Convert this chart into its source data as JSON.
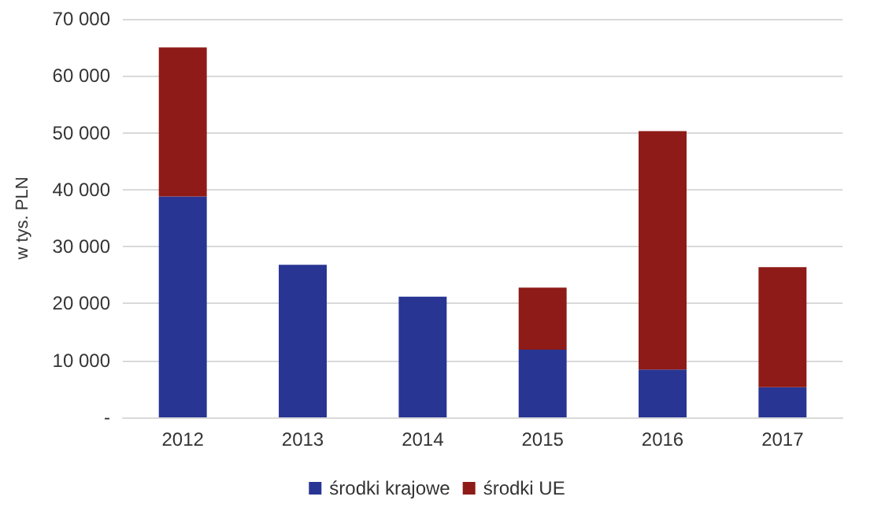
{
  "chart_data": {
    "type": "bar",
    "stacked": true,
    "ylabel": "w tys. PLN",
    "categories": [
      "2012",
      "2013",
      "2014",
      "2015",
      "2016",
      "2017"
    ],
    "series": [
      {
        "name": "środki krajowe",
        "color": "#283593",
        "values": [
          38800,
          26800,
          21200,
          11900,
          8400,
          5300
        ]
      },
      {
        "name": "środki UE",
        "color": "#8e1b17",
        "values": [
          26200,
          null,
          null,
          10900,
          41900,
          21100
        ]
      }
    ],
    "ylim": [
      0,
      70000
    ],
    "yticks": [
      {
        "value": 0,
        "label": "-"
      },
      {
        "value": 10000,
        "label": "10 000"
      },
      {
        "value": 20000,
        "label": "20 000"
      },
      {
        "value": 30000,
        "label": "30 000"
      },
      {
        "value": 40000,
        "label": "40 000"
      },
      {
        "value": 50000,
        "label": "50 000"
      },
      {
        "value": 60000,
        "label": "60 000"
      },
      {
        "value": 70000,
        "label": "70 000"
      }
    ],
    "grid": "y",
    "legend": "bottom"
  }
}
